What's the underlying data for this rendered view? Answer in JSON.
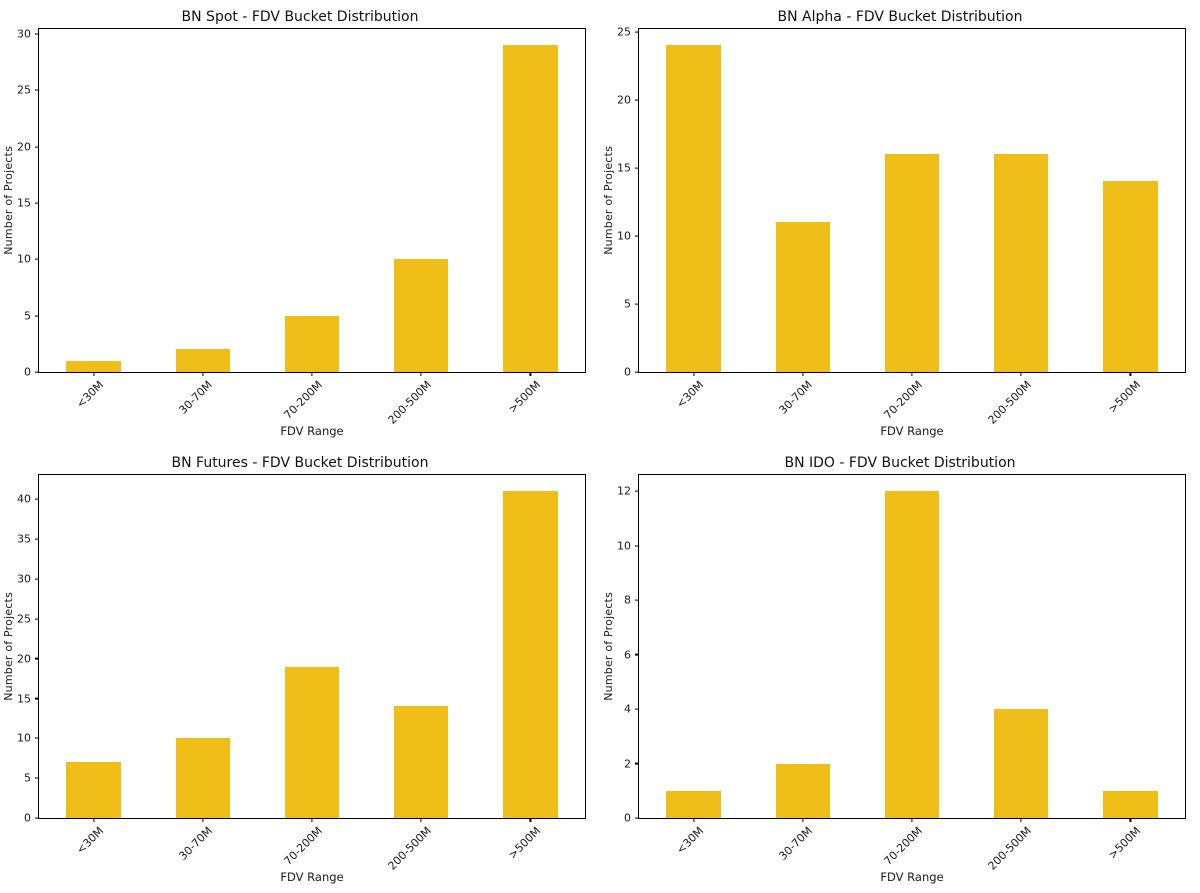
{
  "figure": {
    "background": "#ffffff",
    "text_color": "#1a1a1a",
    "spine_color": "#000000"
  },
  "chart_data": [
    {
      "type": "bar",
      "title": "BN Spot - FDV Bucket Distribution",
      "categories": [
        "<30M",
        "30-70M",
        "70-200M",
        "200-500M",
        ">500M"
      ],
      "values": [
        1,
        2,
        5,
        10,
        29
      ],
      "xlabel": "FDV Range",
      "ylabel": "Number of Projects",
      "ylim": [
        0,
        30.45
      ],
      "yticks": [
        0,
        5,
        10,
        15,
        20,
        25,
        30
      ],
      "bar_color": "#F0BE18",
      "bar_width_fraction": 0.5,
      "tick_label_rotation": 45,
      "grid": false,
      "legend": "none"
    },
    {
      "type": "bar",
      "title": "BN Alpha - FDV Bucket Distribution",
      "categories": [
        "<30M",
        "30-70M",
        "70-200M",
        "200-500M",
        ">500M"
      ],
      "values": [
        24,
        11,
        16,
        16,
        14
      ],
      "xlabel": "FDV Range",
      "ylabel": "Number of Projects",
      "ylim": [
        0,
        25.2
      ],
      "yticks": [
        0,
        5,
        10,
        15,
        20,
        25
      ],
      "bar_color": "#F0BE18",
      "bar_width_fraction": 0.5,
      "tick_label_rotation": 45,
      "grid": false,
      "legend": "none"
    },
    {
      "type": "bar",
      "title": "BN Futures - FDV Bucket Distribution",
      "categories": [
        "<30M",
        "30-70M",
        "70-200M",
        "200-500M",
        ">500M"
      ],
      "values": [
        7,
        10,
        19,
        14,
        41
      ],
      "xlabel": "FDV Range",
      "ylabel": "Number of Projects",
      "ylim": [
        0,
        43.05
      ],
      "yticks": [
        0,
        5,
        10,
        15,
        20,
        25,
        30,
        35,
        40
      ],
      "bar_color": "#F0BE18",
      "bar_width_fraction": 0.5,
      "tick_label_rotation": 45,
      "grid": false,
      "legend": "none"
    },
    {
      "type": "bar",
      "title": "BN IDO - FDV Bucket Distribution",
      "categories": [
        "<30M",
        "30-70M",
        "70-200M",
        "200-500M",
        ">500M"
      ],
      "values": [
        1,
        2,
        12,
        4,
        1
      ],
      "xlabel": "FDV Range",
      "ylabel": "Number of Projects",
      "ylim": [
        0,
        12.6
      ],
      "yticks": [
        0,
        2,
        4,
        6,
        8,
        10,
        12
      ],
      "bar_color": "#F0BE18",
      "bar_width_fraction": 0.5,
      "tick_label_rotation": 45,
      "grid": false,
      "legend": "none"
    }
  ]
}
